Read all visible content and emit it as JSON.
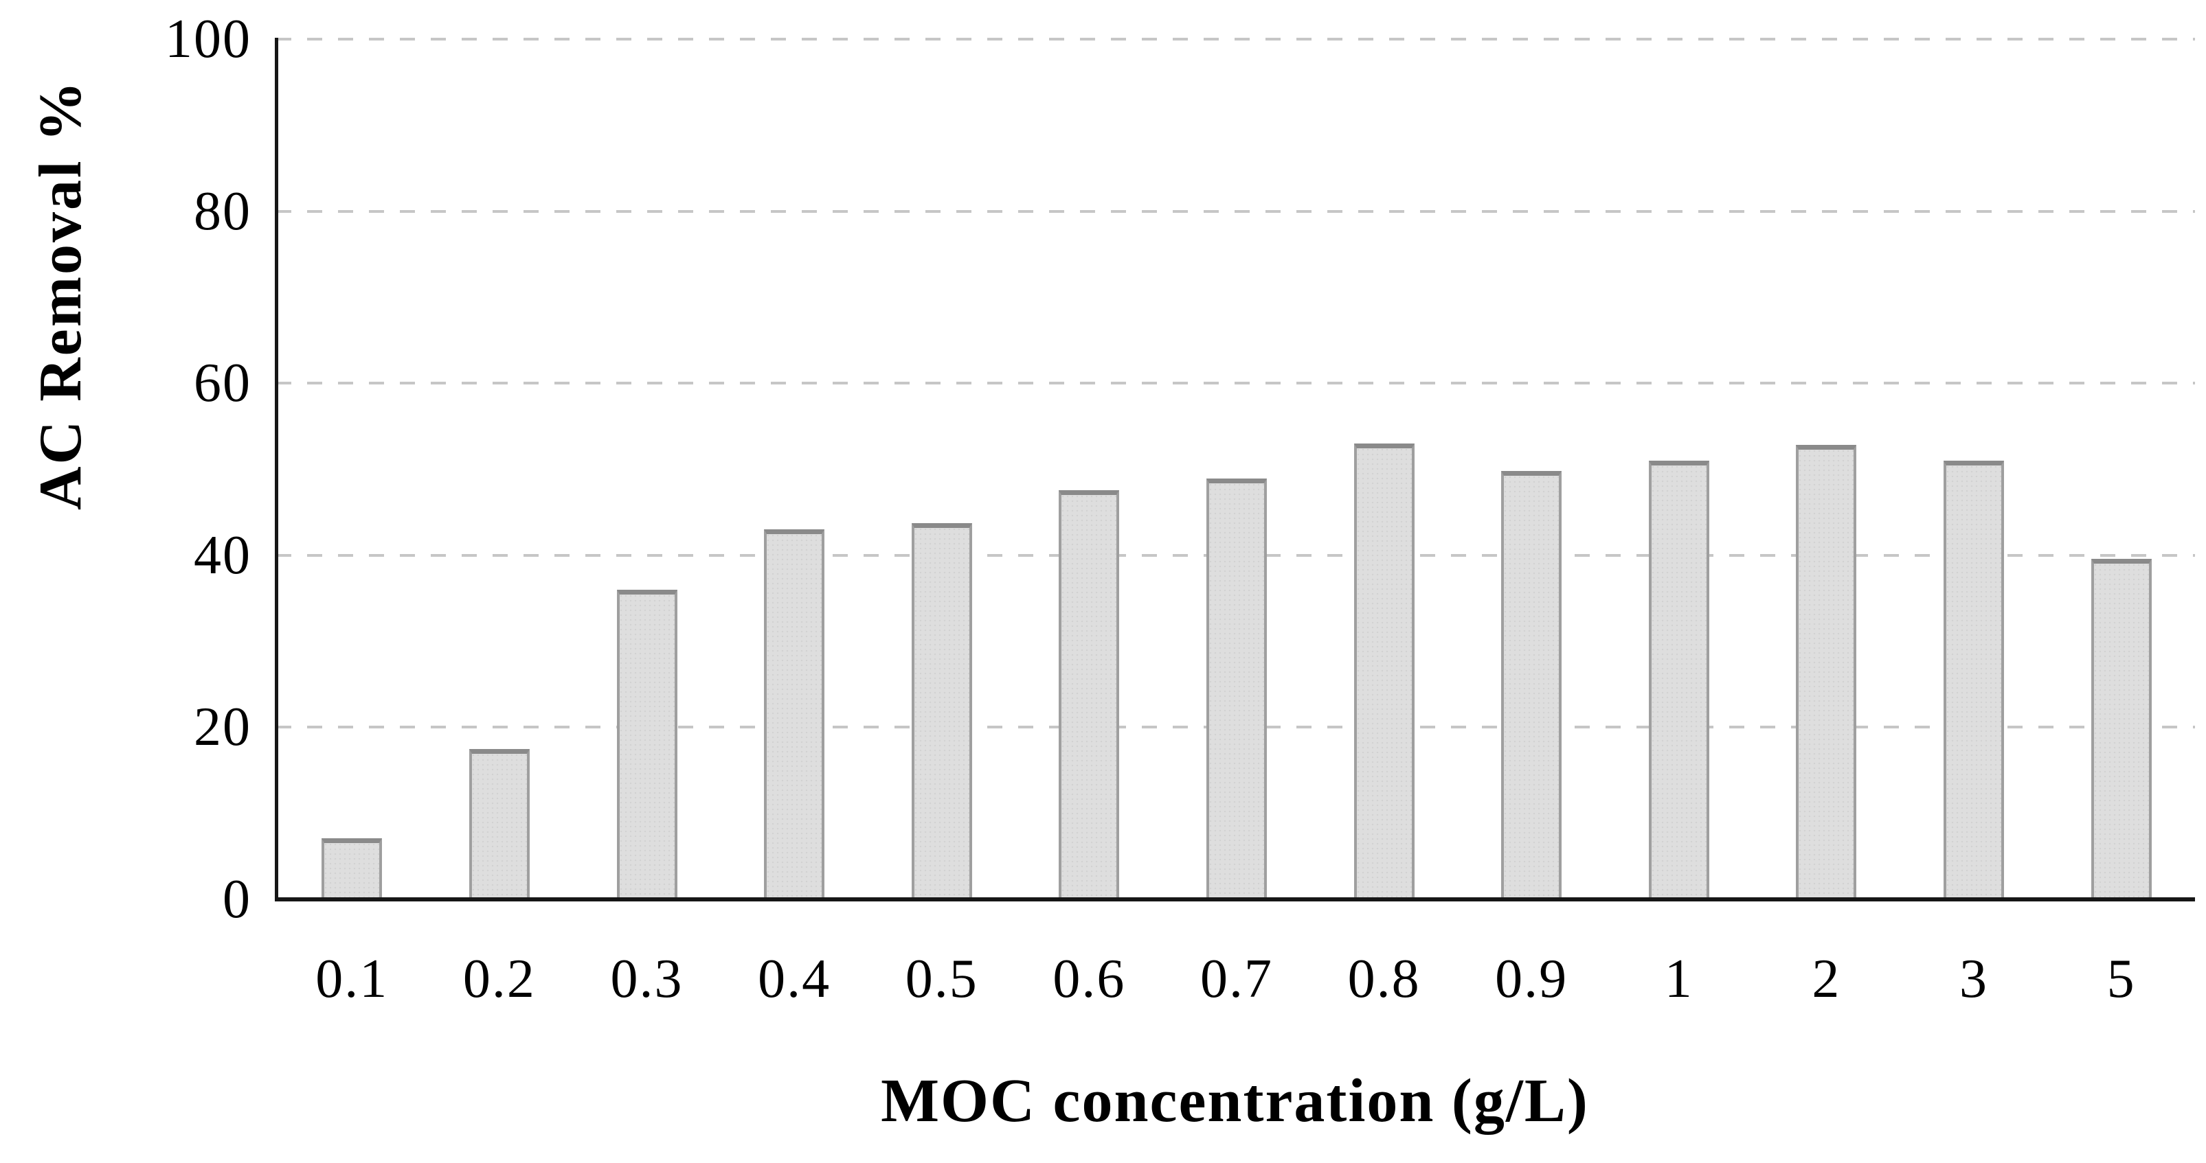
{
  "chart_data": {
    "type": "bar",
    "title": "",
    "xlabel": "MOC concentration (g/L)",
    "ylabel": "AC Removal %",
    "categories": [
      "0.1",
      "0.2",
      "0.3",
      "0.4",
      "0.5",
      "0.6",
      "0.7",
      "0.8",
      "0.9",
      "1",
      "2",
      "3",
      "5"
    ],
    "values": [
      7.1,
      17.5,
      36.0,
      43.0,
      43.7,
      47.6,
      48.9,
      53.0,
      49.8,
      51.0,
      52.8,
      51.0,
      39.6
    ],
    "ylim": [
      0,
      100
    ],
    "yticks": [
      0,
      20,
      40,
      60,
      80,
      100
    ],
    "grid": "dashed-horizontal",
    "legend": "none",
    "colors": {
      "bar_fill": "#dedede",
      "bar_border": "#9f9f9f",
      "bar_border_top": "#8a8a8a",
      "gridline": "#c6c6c6",
      "axis": "#161616",
      "text": "#000000",
      "background": "#ffffff"
    }
  }
}
